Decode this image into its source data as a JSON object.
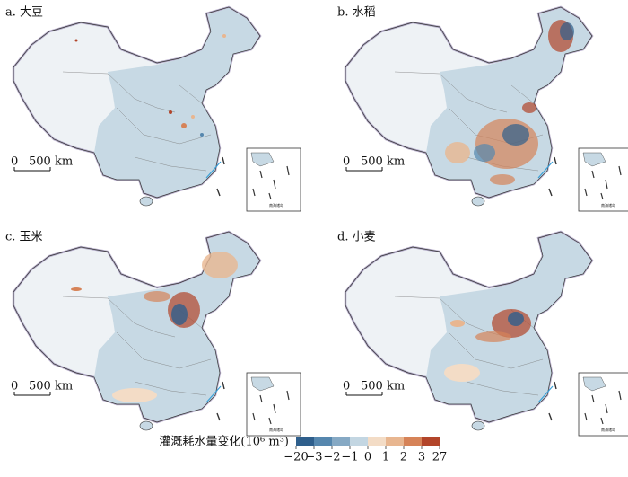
{
  "panels": [
    {
      "label": "a. 大豆"
    },
    {
      "label": "b. 水稻"
    },
    {
      "label": "c. 玉米"
    },
    {
      "label": "d. 小麦"
    }
  ],
  "scale_bar": {
    "zero": "0",
    "length": "500 km"
  },
  "inset_label": "南海诸岛",
  "legend": {
    "title": "灌溉耗水量变化(10⁶ m³)",
    "ticks": [
      {
        "value": -20,
        "label": "−20"
      },
      {
        "value": -3,
        "label": "−3"
      },
      {
        "value": -2,
        "label": "−2"
      },
      {
        "value": -1,
        "label": "−1"
      },
      0,
      1,
      2,
      3,
      27
    ],
    "colors": [
      "#2f5f8c",
      "#5687ae",
      "#86a9c4",
      "#c3d6e2",
      "#f3dcc6",
      "#e8b690",
      "#d68358",
      "#b2452a"
    ]
  }
}
